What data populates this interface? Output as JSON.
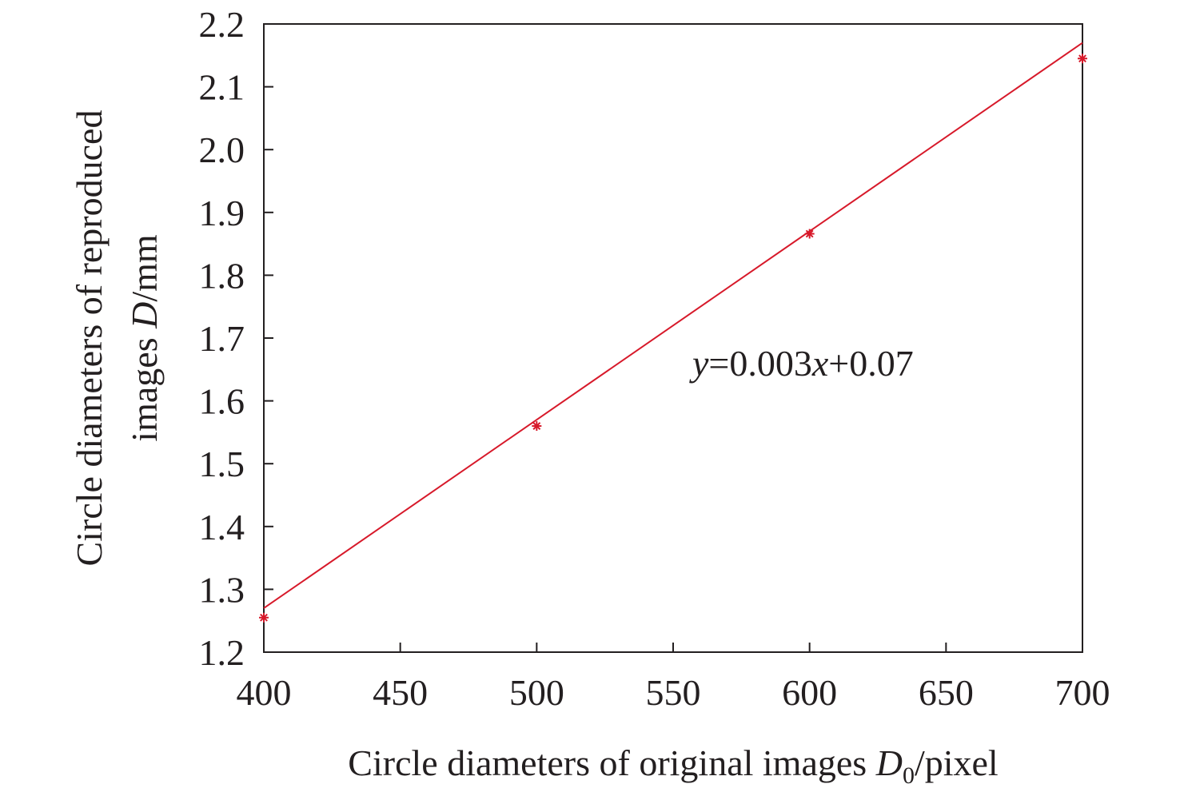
{
  "chart_data": {
    "type": "scatter",
    "title": "",
    "xlabel": {
      "prefix": "Circle diameters of original images ",
      "var": "D",
      "sub": "0",
      "suffix": "/pixel"
    },
    "ylabel": {
      "line1": "Circle diameters of reproduced",
      "line2_prefix": "images ",
      "line2_var": "D",
      "line2_suffix": "/mm"
    },
    "xlim": [
      400,
      700
    ],
    "ylim": [
      1.2,
      2.2
    ],
    "xticks": [
      "400",
      "450",
      "500",
      "550",
      "600",
      "650",
      "700"
    ],
    "yticks": [
      "1.2",
      "1.3",
      "1.4",
      "1.5",
      "1.6",
      "1.7",
      "1.8",
      "1.9",
      "2.0",
      "2.1",
      "2.2"
    ],
    "grid": false,
    "series": [
      {
        "marker": "asterisk",
        "color": "#d7192a",
        "x": [
          400,
          500,
          600,
          700
        ],
        "y": [
          1.255,
          1.56,
          1.866,
          2.145
        ]
      }
    ],
    "fit_line": {
      "slope": 0.003,
      "intercept": 0.07,
      "x_range": [
        400,
        700
      ],
      "color": "#d7192a"
    },
    "annotation": {
      "var_y": "y",
      "mid": "=0.003",
      "var_x": "x",
      "end": "+0.07"
    }
  }
}
